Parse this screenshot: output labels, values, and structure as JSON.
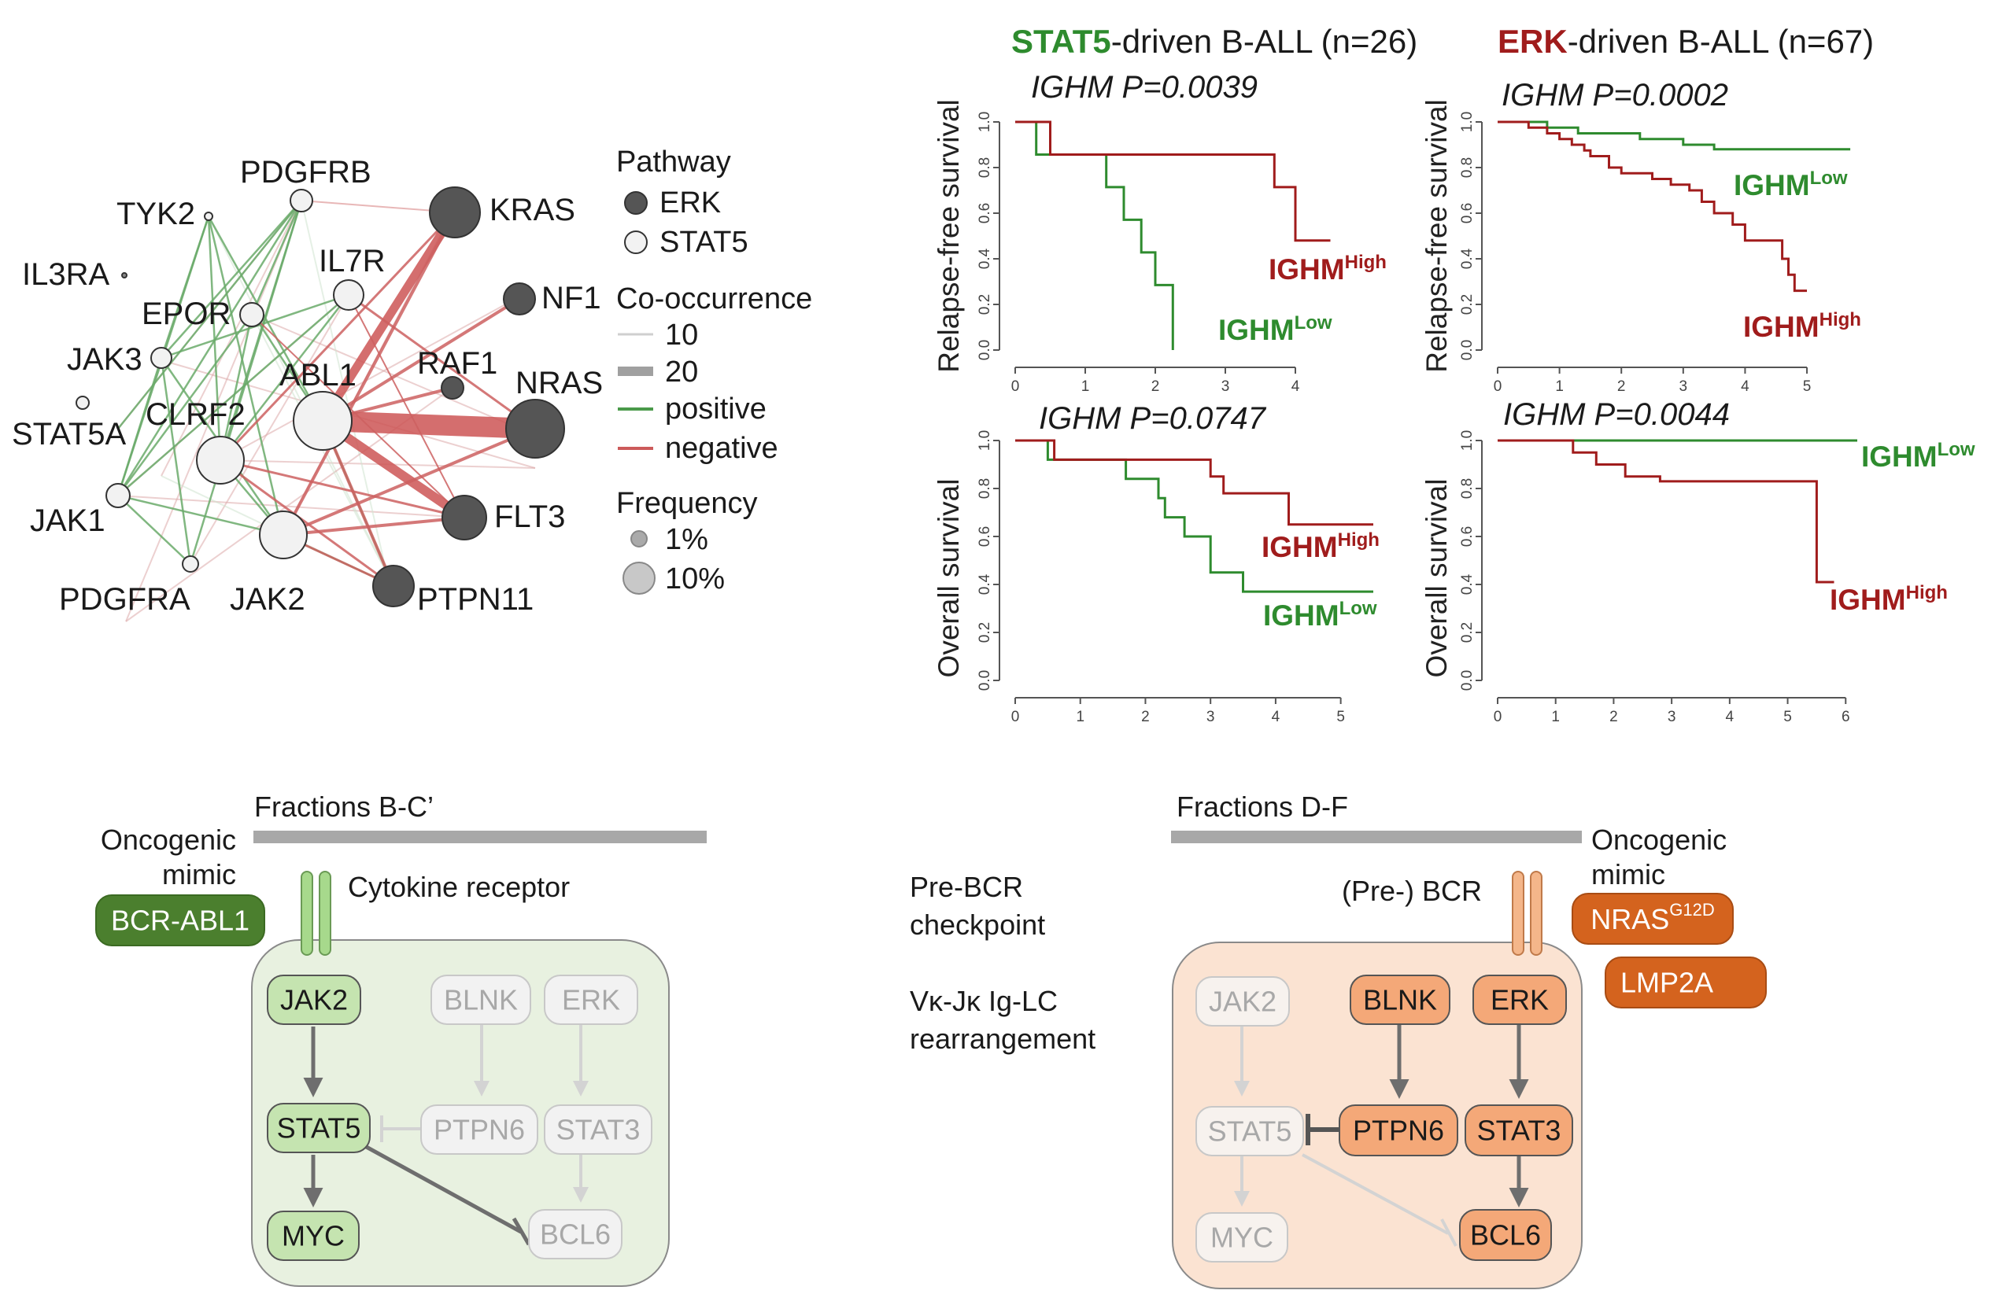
{
  "network": {
    "legend": {
      "pathway_title": "Pathway",
      "pathway_items": [
        {
          "label": "ERK",
          "fill": "#555555"
        },
        {
          "label": "STAT5",
          "fill": "#f2f2f2"
        }
      ],
      "cooccurrence_title": "Co-occurrence",
      "cooccurrence_items": [
        {
          "label": "10",
          "color": "#cfcfcf",
          "weight": "thin"
        },
        {
          "label": "20",
          "color": "#a0a0a0",
          "weight": "thick"
        },
        {
          "label": "positive",
          "color": "#4a9a4a"
        },
        {
          "label": "negative",
          "color": "#cc5a5a"
        }
      ],
      "frequency_title": "Frequency",
      "frequency_items": [
        {
          "label": "1%"
        },
        {
          "label": "10%"
        }
      ]
    },
    "nodes": [
      {
        "id": "KRAS",
        "label": "KRAS",
        "pathway": "ERK"
      },
      {
        "id": "NF1",
        "label": "NF1",
        "pathway": "ERK"
      },
      {
        "id": "RAF1",
        "label": "RAF1",
        "pathway": "ERK"
      },
      {
        "id": "NRAS",
        "label": "NRAS",
        "pathway": "ERK"
      },
      {
        "id": "FLT3",
        "label": "FLT3",
        "pathway": "ERK"
      },
      {
        "id": "PTPN11",
        "label": "PTPN11",
        "pathway": "ERK"
      },
      {
        "id": "PDGFRB",
        "label": "PDGFRB",
        "pathway": "STAT5"
      },
      {
        "id": "TYK2",
        "label": "TYK2",
        "pathway": "STAT5"
      },
      {
        "id": "IL3RA",
        "label": "IL3RA",
        "pathway": "STAT5"
      },
      {
        "id": "IL7R",
        "label": "IL7R",
        "pathway": "STAT5"
      },
      {
        "id": "EPOR",
        "label": "EPOR",
        "pathway": "STAT5"
      },
      {
        "id": "JAK3",
        "label": "JAK3",
        "pathway": "STAT5"
      },
      {
        "id": "ABL1",
        "label": "ABL1",
        "pathway": "STAT5"
      },
      {
        "id": "STAT5A",
        "label": "STAT5A",
        "pathway": "STAT5"
      },
      {
        "id": "CLRF2",
        "label": "CLRF2",
        "pathway": "STAT5"
      },
      {
        "id": "JAK1",
        "label": "JAK1",
        "pathway": "STAT5"
      },
      {
        "id": "PDGFRA",
        "label": "PDGFRA",
        "pathway": "STAT5"
      },
      {
        "id": "JAK2",
        "label": "JAK2",
        "pathway": "STAT5"
      }
    ]
  },
  "survival": {
    "stat5_title_bold": "STAT5",
    "stat5_title_rest": "-driven B-ALL (n=26)",
    "erk_title_bold": "ERK",
    "erk_title_rest": "-driven B-ALL (n=67)",
    "high_label": "IGHM",
    "high_sup": "High",
    "low_label": "IGHM",
    "low_sup": "Low",
    "colors": {
      "high": "#a01c1c",
      "low": "#2e8b2e"
    },
    "panels": [
      {
        "id": "tl",
        "gene": "IGHM",
        "p_text": " P=0.0039",
        "ylabel": "Relapse-free survival",
        "xticks": [
          "0",
          "1",
          "2",
          "3",
          "4"
        ],
        "yticks": [
          "0.0",
          "0.2",
          "0.4",
          "0.6",
          "0.8",
          "1.0"
        ]
      },
      {
        "id": "tr",
        "gene": "IGHM",
        "p_text": " P=0.0002",
        "ylabel": "Relapse-free survival",
        "xticks": [
          "0",
          "1",
          "2",
          "3",
          "4",
          "5"
        ],
        "yticks": [
          "0.0",
          "0.2",
          "0.4",
          "0.6",
          "0.8",
          "1.0"
        ]
      },
      {
        "id": "bl",
        "gene": "IGHM",
        "p_text": " P=0.0747",
        "ylabel": "Overall survival",
        "xticks": [
          "0",
          "1",
          "2",
          "3",
          "4",
          "5"
        ],
        "yticks": [
          "0.0",
          "0.2",
          "0.4",
          "0.6",
          "0.8",
          "1.0"
        ]
      },
      {
        "id": "br",
        "gene": "IGHM",
        "p_text": " P=0.0044",
        "ylabel": "Overall survival",
        "xticks": [
          "0",
          "1",
          "2",
          "3",
          "4",
          "5",
          "6"
        ],
        "yticks": [
          "0.0",
          "0.2",
          "0.4",
          "0.6",
          "0.8",
          "1.0"
        ]
      }
    ]
  },
  "schema_left": {
    "fractions_label": "Fractions B-C’",
    "oncogenic_line1": "Oncogenic",
    "oncogenic_line2": "mimic",
    "receptor_label": "Cytokine receptor",
    "mimic_box": "BCR-ABL1",
    "boxes": {
      "jak2": "JAK2",
      "stat5": "STAT5",
      "myc": "MYC",
      "blnk": "BLNK",
      "erk": "ERK",
      "ptpn6": "PTPN6",
      "stat3": "STAT3",
      "bcl6": "BCL6"
    }
  },
  "schema_middle": {
    "checkpoint_line1": "Pre-BCR",
    "checkpoint_line2": "checkpoint",
    "rearr_line1": "Vκ-Jκ Ig-LC",
    "rearr_line2": "rearrangement"
  },
  "schema_right": {
    "fractions_label": "Fractions D-F",
    "oncogenic_line1": "Oncogenic",
    "oncogenic_line2": "mimic",
    "receptor_label": "(Pre-) BCR",
    "mimic1": "NRAS",
    "mimic1_sup": "G12D",
    "mimic2": "LMP2A",
    "boxes": {
      "jak2": "JAK2",
      "stat5": "STAT5",
      "myc": "MYC",
      "blnk": "BLNK",
      "erk": "ERK",
      "ptpn6": "PTPN6",
      "stat3": "STAT3",
      "bcl6": "BCL6"
    }
  }
}
